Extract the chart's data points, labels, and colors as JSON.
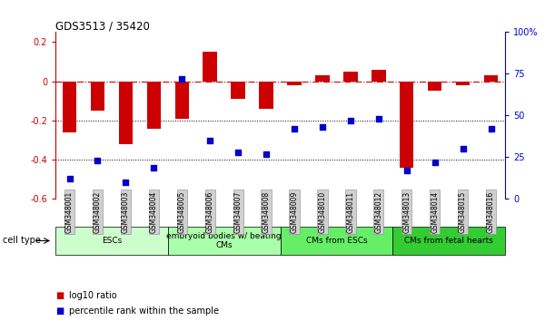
{
  "title": "GDS3513 / 35420",
  "samples": [
    "GSM348001",
    "GSM348002",
    "GSM348003",
    "GSM348004",
    "GSM348005",
    "GSM348006",
    "GSM348007",
    "GSM348008",
    "GSM348009",
    "GSM348010",
    "GSM348011",
    "GSM348012",
    "GSM348013",
    "GSM348014",
    "GSM348015",
    "GSM348016"
  ],
  "log10_ratio": [
    -0.26,
    -0.15,
    -0.32,
    -0.24,
    -0.19,
    0.15,
    -0.09,
    -0.14,
    -0.02,
    0.03,
    0.05,
    0.06,
    -0.44,
    -0.05,
    -0.02,
    0.03
  ],
  "percentile_rank": [
    12,
    23,
    10,
    19,
    72,
    35,
    28,
    27,
    42,
    43,
    47,
    48,
    17,
    22,
    30,
    42
  ],
  "ylim_left": [
    -0.6,
    0.25
  ],
  "ylim_right": [
    0,
    100
  ],
  "y_ticks_left": [
    -0.6,
    -0.4,
    -0.2,
    0.0,
    0.2
  ],
  "y_ticks_right": [
    0,
    25,
    50,
    75,
    100
  ],
  "y_tick_labels_right": [
    "0",
    "25",
    "50",
    "75",
    "100%"
  ],
  "bar_color": "#cc0000",
  "dot_color": "#0000cc",
  "cell_groups": [
    {
      "label": "ESCs",
      "start": 0,
      "end": 4,
      "color": "#ccffcc"
    },
    {
      "label": "embryoid bodies w/ beating\nCMs",
      "start": 4,
      "end": 8,
      "color": "#aaffaa"
    },
    {
      "label": "CMs from ESCs",
      "start": 8,
      "end": 12,
      "color": "#66ee66"
    },
    {
      "label": "CMs from fetal hearts",
      "start": 12,
      "end": 16,
      "color": "#33cc33"
    }
  ],
  "bg_color": "#ffffff"
}
